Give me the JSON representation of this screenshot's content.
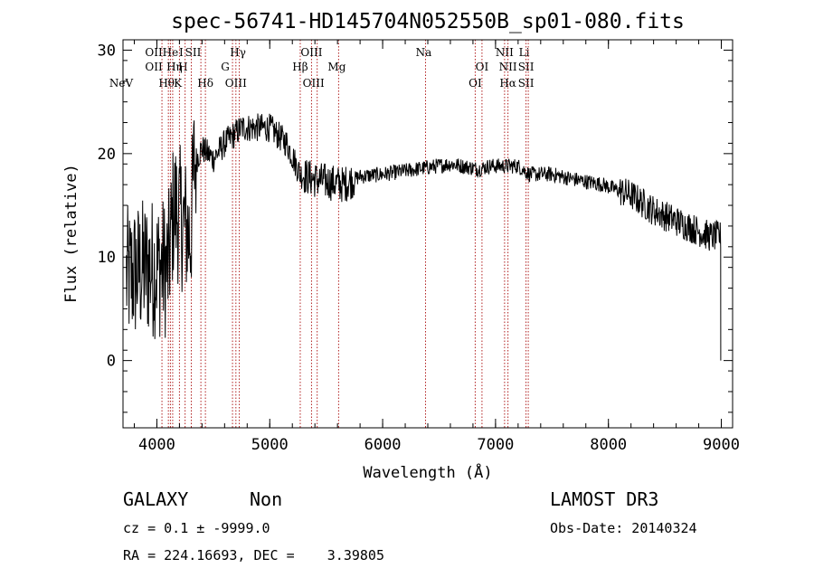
{
  "chart_data": {
    "type": "line",
    "title": "spec-56741-HD145704N052550B_sp01-080.fits",
    "xlabel": "Wavelength (Å)",
    "ylabel": "Flux (relative)",
    "xlim": [
      3700,
      9100
    ],
    "ylim": [
      -6.5,
      31
    ],
    "xticks": [
      "4000",
      "5000",
      "6000",
      "7000",
      "8000",
      "9000"
    ],
    "yticks": [
      "0",
      "10",
      "20",
      "30"
    ],
    "anchors": [
      [
        3730,
        8
      ],
      [
        3900,
        9
      ],
      [
        4100,
        9
      ],
      [
        4150,
        15
      ],
      [
        4300,
        12
      ],
      [
        4330,
        19
      ],
      [
        4400,
        20.5
      ],
      [
        4500,
        19.5
      ],
      [
        4600,
        21
      ],
      [
        4750,
        22.5
      ],
      [
        5000,
        22.5
      ],
      [
        5150,
        21
      ],
      [
        5270,
        18
      ],
      [
        5400,
        17.5
      ],
      [
        5650,
        17
      ],
      [
        5800,
        17.8
      ],
      [
        6000,
        18
      ],
      [
        6300,
        18.5
      ],
      [
        6600,
        19
      ],
      [
        6850,
        18.5
      ],
      [
        6950,
        18.8
      ],
      [
        7200,
        18.8
      ],
      [
        7300,
        18
      ],
      [
        7500,
        18
      ],
      [
        7700,
        17.5
      ],
      [
        7950,
        17
      ],
      [
        8200,
        16
      ],
      [
        8400,
        14.5
      ],
      [
        8700,
        13
      ],
      [
        8900,
        12
      ],
      [
        8995,
        12
      ]
    ],
    "noise_bands": [
      [
        3700,
        4350,
        7.0
      ],
      [
        4350,
        5300,
        1.4
      ],
      [
        5300,
        5750,
        1.8
      ],
      [
        5750,
        8100,
        0.75
      ],
      [
        8100,
        9000,
        1.5
      ]
    ],
    "lines": [
      {
        "wave": 4045,
        "labels": [
          {
            "text": "NeV",
            "row": 3,
            "dx": -45
          },
          {
            "text": "OII",
            "row": 1,
            "dx": -9
          },
          {
            "text": "OII",
            "row": 2,
            "dx": -9
          }
        ]
      },
      {
        "wave": 4102,
        "labels": [
          {
            "text": "Hθ",
            "row": 3,
            "dx": -2
          }
        ]
      },
      {
        "wave": 4120,
        "labels": [
          {
            "text": "He",
            "row": 1,
            "dx": 0
          }
        ]
      },
      {
        "wave": 4140,
        "labels": [
          {
            "text": "Hη",
            "row": 2,
            "dx": 2
          }
        ]
      },
      {
        "wave": 4200,
        "labels": [
          {
            "text": "I",
            "row": 1,
            "dx": 2
          },
          {
            "text": "H",
            "row": 2,
            "dx": 4
          }
        ]
      },
      {
        "wave": 4250,
        "labels": [
          {
            "text": "K",
            "row": 3,
            "dx": -8
          }
        ]
      },
      {
        "wave": 4305,
        "labels": [
          {
            "text": "SII",
            "row": 1,
            "dx": 2
          }
        ]
      },
      {
        "wave": 4390,
        "labels": []
      },
      {
        "wave": 4430,
        "labels": [
          {
            "text": "Hδ",
            "row": 3,
            "dx": 0
          }
        ]
      },
      {
        "wave": 4670,
        "labels": [
          {
            "text": "Hγ",
            "row": 1,
            "dx": 6
          },
          {
            "text": "G",
            "row": 2,
            "dx": -8
          }
        ]
      },
      {
        "wave": 4700,
        "labels": [
          {
            "text": "OIII",
            "row": 3,
            "dx": 0
          }
        ]
      },
      {
        "wave": 4730,
        "labels": []
      },
      {
        "wave": 5270,
        "labels": [
          {
            "text": "Hβ",
            "row": 2,
            "dx": 0
          }
        ]
      },
      {
        "wave": 5370,
        "labels": [
          {
            "text": "OIII",
            "row": 1,
            "dx": 0
          }
        ]
      },
      {
        "wave": 5420,
        "labels": [
          {
            "text": "OIII",
            "row": 3,
            "dx": -4
          }
        ]
      },
      {
        "wave": 5610,
        "labels": [
          {
            "text": "Mg",
            "row": 2,
            "dx": -2
          }
        ]
      },
      {
        "wave": 6380,
        "labels": [
          {
            "text": "Na",
            "row": 1,
            "dx": -2
          }
        ]
      },
      {
        "wave": 6820,
        "labels": [
          {
            "text": "OI",
            "row": 3,
            "dx": 0
          }
        ]
      },
      {
        "wave": 6880,
        "labels": [
          {
            "text": "OI",
            "row": 2,
            "dx": 0
          }
        ]
      },
      {
        "wave": 7080,
        "labels": [
          {
            "text": "NII",
            "row": 1,
            "dx": 0
          }
        ]
      },
      {
        "wave": 7110,
        "labels": [
          {
            "text": "NII",
            "row": 2,
            "dx": 0
          },
          {
            "text": "Hα",
            "row": 3,
            "dx": 0
          }
        ]
      },
      {
        "wave": 7270,
        "labels": [
          {
            "text": "Li",
            "row": 1,
            "dx": -2
          },
          {
            "text": "SII",
            "row": 2,
            "dx": 0
          },
          {
            "text": "SII",
            "row": 3,
            "dx": 0
          }
        ]
      },
      {
        "wave": 7290,
        "labels": []
      }
    ]
  },
  "footer": {
    "object_class": "GALAXY",
    "subclass": "Non",
    "survey": "LAMOST DR3",
    "cz_line": "cz = 0.1 ± -9999.0",
    "obs_date": "Obs-Date: 20140324",
    "coords": "RA = 224.16693, DEC =    3.39805"
  }
}
